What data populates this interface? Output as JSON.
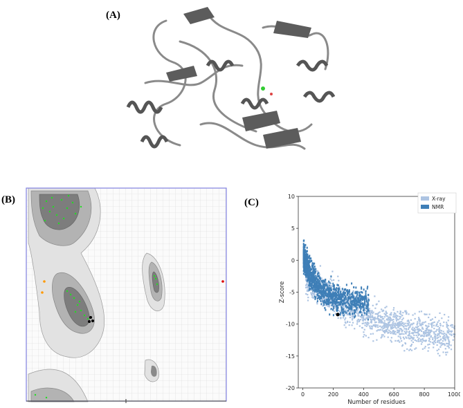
{
  "labels": {
    "a": "(A)",
    "b": "(B)",
    "c": "(C)"
  },
  "colors": {
    "xray": "#adc4e2",
    "nmr": "#3f7fb7",
    "rama_frame": "#8080e0",
    "rama_core": "#7a7a7a",
    "rama_allowed": "#a8a8a8",
    "rama_generous": "#cfcfcf",
    "rama_points": "#22dd22",
    "ribbon": "#777777"
  },
  "chart_data": {
    "type": "scatter",
    "title": "",
    "xlabel": "Number of residues",
    "ylabel": "Z-score",
    "xlim": [
      -30,
      1000
    ],
    "ylim": [
      -20,
      10
    ],
    "xticks": [
      "0",
      "200",
      "400",
      "600",
      "800",
      "1000"
    ],
    "yticks": [
      "10",
      "5",
      "0",
      "-5",
      "-10",
      "-15",
      "-20"
    ],
    "legend": {
      "position": "top-right",
      "entries": [
        "X-ray",
        "NMR"
      ]
    },
    "series": [
      {
        "name": "X-ray",
        "color": "#adc4e2",
        "cloud": true
      },
      {
        "name": "NMR",
        "color": "#3f7fb7",
        "cloud": true
      }
    ],
    "highlight": {
      "x": 230,
      "y": -8.5
    }
  }
}
